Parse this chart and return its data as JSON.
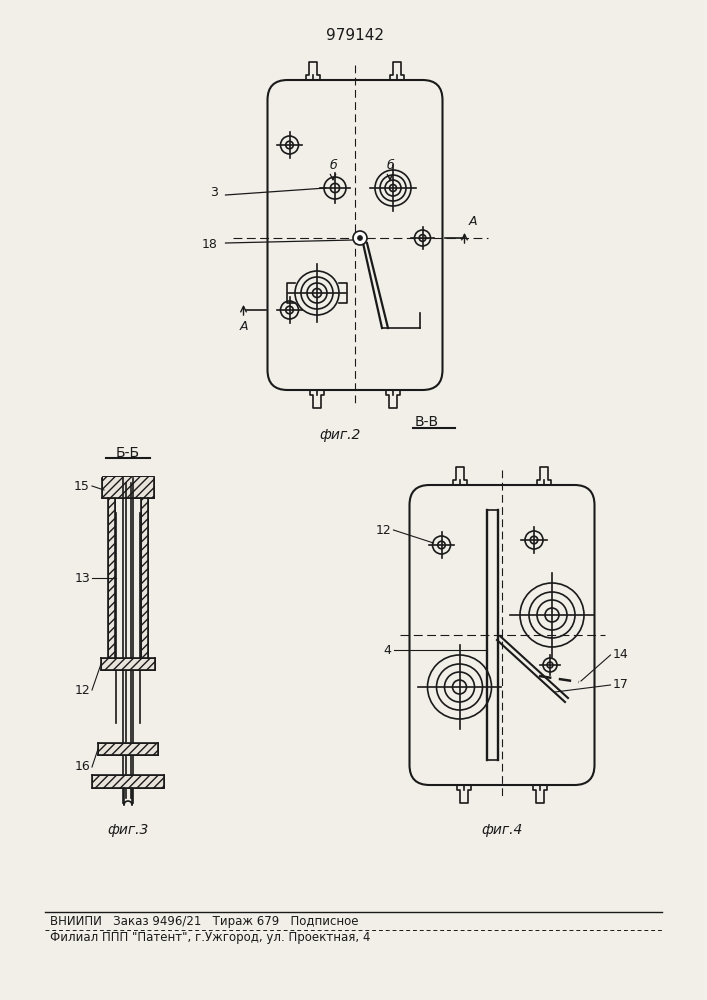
{
  "title": "979142",
  "bg_color": "#f2efe9",
  "line_color": "#1a1a1a",
  "fig2_caption": "фиг.2",
  "fig3_caption": "фиг.3",
  "fig4_caption": "фиг.4",
  "section_bb": "Б-Б",
  "section_vv": "В-В",
  "label_3": "3",
  "label_18": "18",
  "label_b": "б",
  "label_A": "A",
  "label_12a": "12",
  "label_13": "13",
  "label_15": "15",
  "label_16": "16",
  "label_12b": "12",
  "label_4": "4",
  "label_14": "14",
  "label_17": "17",
  "footer_line1": "ВНИИПИ   Заказ 9496/21   Тираж 679   Подписное",
  "footer_line2": "Филиал ППП \"Патент\", г.Ужгород, ул. Проектная, 4"
}
